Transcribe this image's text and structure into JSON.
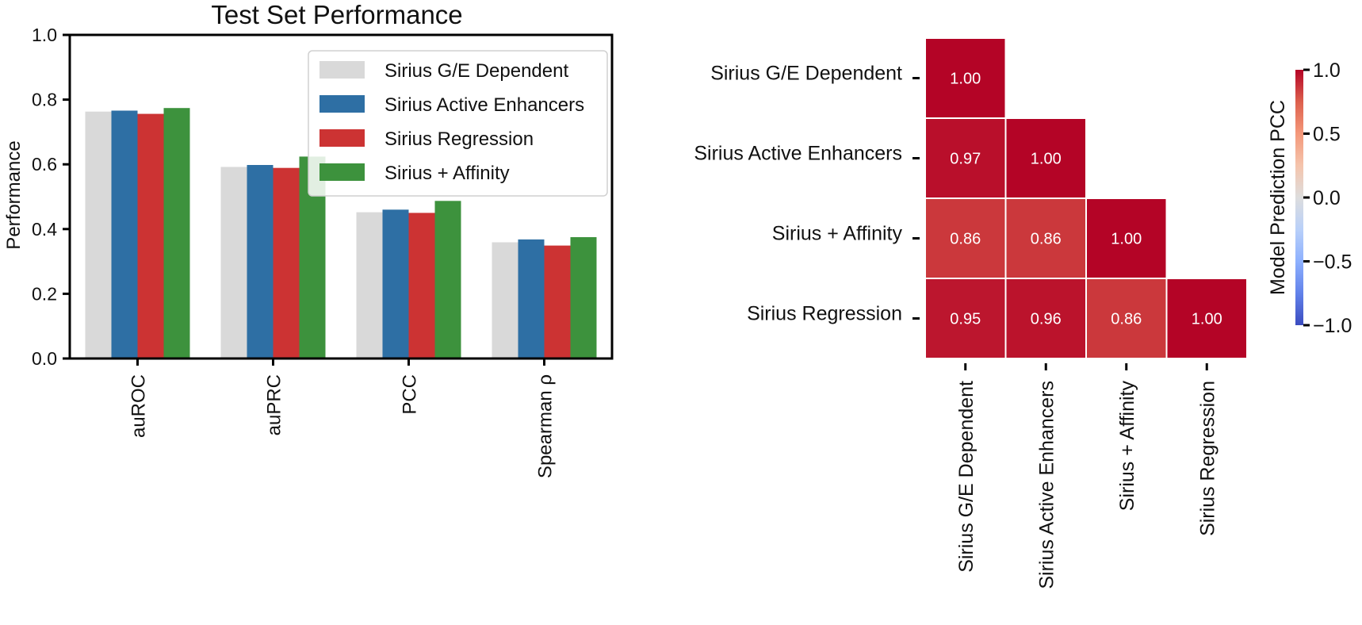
{
  "chart_data": [
    {
      "type": "bar",
      "title": "Test Set Performance",
      "xlabel": "",
      "ylabel": "Performance",
      "ylim": [
        0,
        1
      ],
      "yticks": [
        "0.0",
        "0.2",
        "0.4",
        "0.6",
        "0.8",
        "1.0"
      ],
      "categories": [
        "auROC",
        "auPRC",
        "PCC",
        "Spearman ρ"
      ],
      "series": [
        {
          "name": "Sirius G/E Dependent",
          "color": "#d9d9d9",
          "values": [
            0.763,
            0.592,
            0.452,
            0.359
          ]
        },
        {
          "name": "Sirius Active Enhancers",
          "color": "#2e6fa4",
          "values": [
            0.766,
            0.598,
            0.46,
            0.368
          ]
        },
        {
          "name": "Sirius Regression",
          "color": "#cc3333",
          "values": [
            0.756,
            0.589,
            0.45,
            0.349
          ]
        },
        {
          "name": "Sirius + Affinity",
          "color": "#3d923d",
          "values": [
            0.774,
            0.624,
            0.487,
            0.375
          ]
        }
      ],
      "legend": "top-right",
      "grid": false
    },
    {
      "type": "heatmap",
      "title": "",
      "rows": [
        "Sirius G/E Dependent",
        "Sirius Active Enhancers",
        "Sirius + Affinity",
        "Sirius Regression"
      ],
      "columns": [
        "Sirius G/E Dependent",
        "Sirius Active Enhancers",
        "Sirius + Affinity",
        "Sirius Regression"
      ],
      "cells": [
        [
          {
            "value": 1.0,
            "label": "1.00"
          },
          null,
          null,
          null
        ],
        [
          {
            "value": 0.97,
            "label": "0.97"
          },
          {
            "value": 1.0,
            "label": "1.00"
          },
          null,
          null
        ],
        [
          {
            "value": 0.86,
            "label": "0.86"
          },
          {
            "value": 0.86,
            "label": "0.86"
          },
          {
            "value": 1.0,
            "label": "1.00"
          },
          null
        ],
        [
          {
            "value": 0.95,
            "label": "0.95"
          },
          {
            "value": 0.96,
            "label": "0.96"
          },
          {
            "value": 0.86,
            "label": "0.86"
          },
          {
            "value": 1.0,
            "label": "1.00"
          }
        ]
      ],
      "colorbar": {
        "label": "Model Prediction PCC",
        "range": [
          -1,
          1
        ],
        "ticks": [
          1.0,
          0.5,
          0.0,
          -0.5,
          -1.0
        ],
        "tick_labels": [
          "1.0",
          "0.5",
          "0.0",
          "−0.5",
          "−1.0"
        ],
        "colormap": "coolwarm"
      }
    }
  ]
}
